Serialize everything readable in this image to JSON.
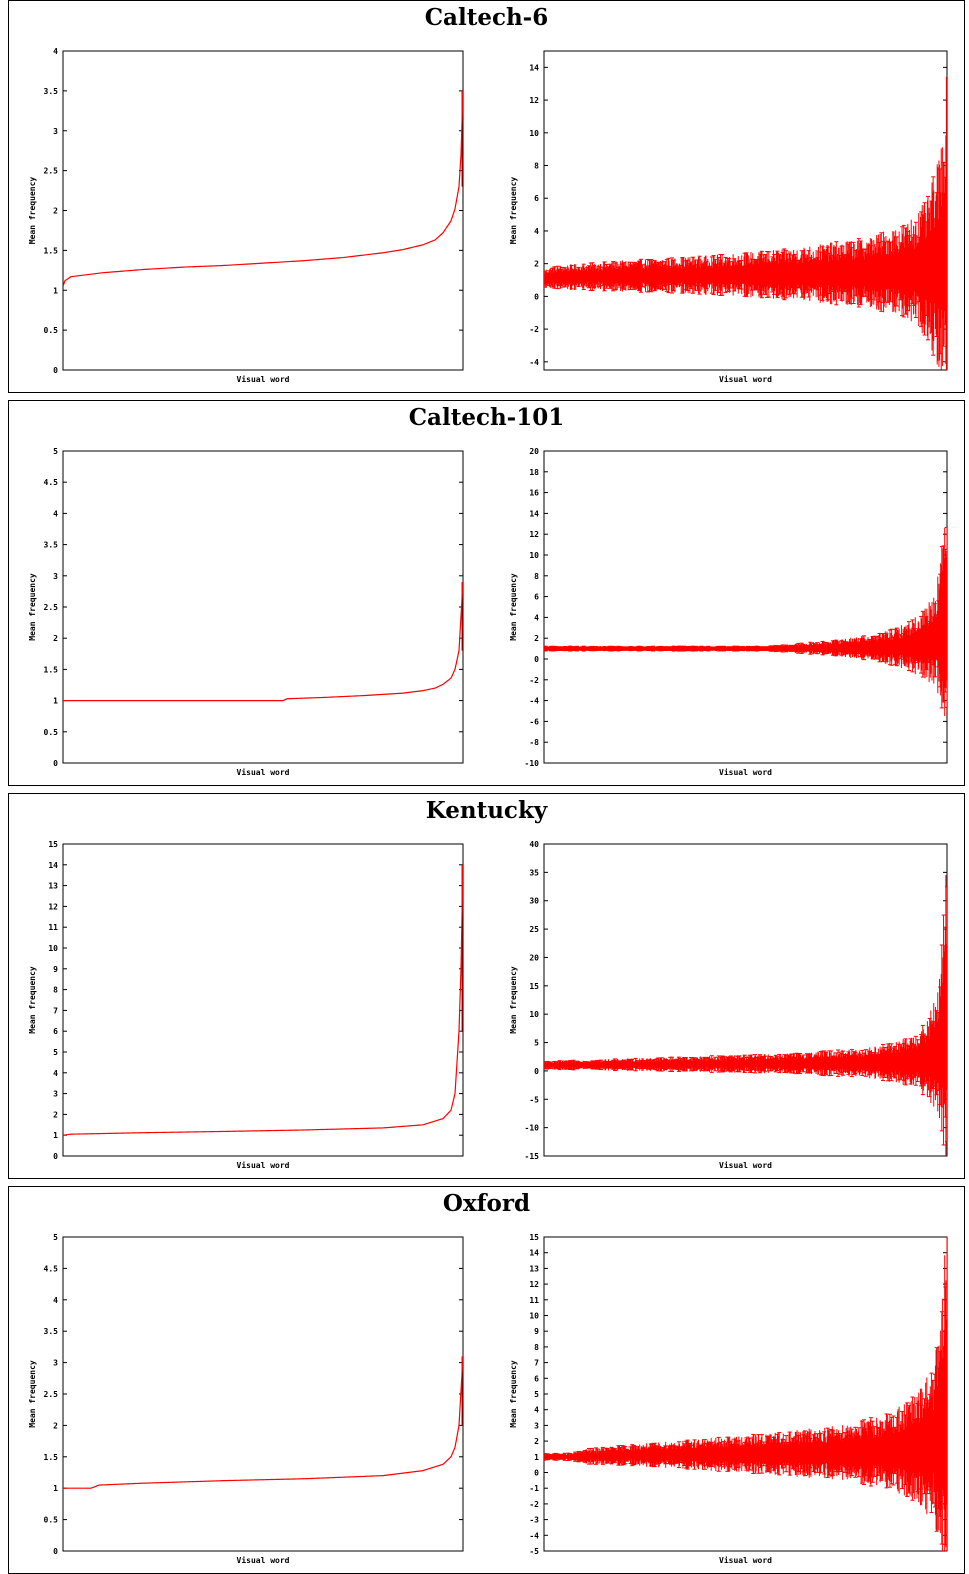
{
  "panels": [
    {
      "title": "Caltech-6",
      "charts": [
        {
          "type": "line",
          "xlabel": "Visual word",
          "ylabel": "Mean frequency",
          "ylim": [
            0,
            4
          ],
          "yticks": [
            "0",
            "0.5",
            "1",
            "1.5",
            "2",
            "2.5",
            "3",
            "3.5",
            "4"
          ],
          "series": [
            {
              "x": [
                0,
                0.005,
                0.02,
                0.1,
                0.2,
                0.3,
                0.4,
                0.5,
                0.6,
                0.7,
                0.8,
                0.85,
                0.9,
                0.93,
                0.95,
                0.97,
                0.98,
                0.99,
                0.995,
                1.0
              ],
              "y": [
                1.05,
                1.12,
                1.17,
                1.22,
                1.26,
                1.29,
                1.31,
                1.34,
                1.37,
                1.41,
                1.47,
                1.51,
                1.57,
                1.63,
                1.72,
                1.87,
                2.02,
                2.3,
                2.7,
                3.5
              ]
            }
          ],
          "color": "#ff0000",
          "grid": false
        },
        {
          "type": "errorbar",
          "xlabel": "Visual word",
          "ylabel": "Mean frequency",
          "ylim": [
            -4.5,
            15
          ],
          "yticks": [
            "-4",
            "-2",
            "0",
            "2",
            "4",
            "6",
            "8",
            "10",
            "12",
            "14"
          ],
          "mean": {
            "x": [
              0,
              0.02,
              0.2,
              0.4,
              0.6,
              0.8,
              0.9,
              0.95,
              0.98,
              1.0
            ],
            "y": [
              1.05,
              1.15,
              1.25,
              1.3,
              1.35,
              1.45,
              1.55,
              1.7,
              2.0,
              3.0
            ]
          },
          "spread": {
            "x": [
              0,
              0.02,
              0.2,
              0.4,
              0.6,
              0.8,
              0.9,
              0.95,
              0.98,
              1.0
            ],
            "y": [
              0.5,
              0.6,
              0.8,
              1.0,
              1.3,
              1.8,
              2.5,
              3.5,
              5.5,
              9.0
            ]
          },
          "color": "#ff0000",
          "grid": false
        }
      ]
    },
    {
      "title": "Caltech-101",
      "charts": [
        {
          "type": "line",
          "xlabel": "Visual word",
          "ylabel": "Mean frequency",
          "ylim": [
            0,
            5
          ],
          "yticks": [
            "0",
            "0.5",
            "1",
            "1.5",
            "2",
            "2.5",
            "3",
            "3.5",
            "4",
            "4.5",
            "5"
          ],
          "series": [
            {
              "x": [
                0,
                0.55,
                0.56,
                0.65,
                0.75,
                0.85,
                0.9,
                0.93,
                0.95,
                0.97,
                0.98,
                0.99,
                1.0
              ],
              "y": [
                1.0,
                1.0,
                1.03,
                1.05,
                1.08,
                1.12,
                1.16,
                1.2,
                1.26,
                1.36,
                1.5,
                1.8,
                2.9
              ]
            }
          ],
          "color": "#ff0000",
          "grid": false
        },
        {
          "type": "errorbar",
          "xlabel": "Visual word",
          "ylabel": "Mean frequency",
          "ylim": [
            -10,
            20
          ],
          "yticks": [
            "-10",
            "-8",
            "-6",
            "-4",
            "-2",
            "0",
            "2",
            "4",
            "6",
            "8",
            "10",
            "12",
            "14",
            "16",
            "18",
            "20"
          ],
          "mean": {
            "x": [
              0,
              0.55,
              0.7,
              0.85,
              0.93,
              0.97,
              1.0
            ],
            "y": [
              1.0,
              1.0,
              1.05,
              1.1,
              1.3,
              1.8,
              4.0
            ]
          },
          "spread": {
            "x": [
              0,
              0.55,
              0.6,
              0.7,
              0.8,
              0.88,
              0.93,
              0.97,
              0.99,
              1.0
            ],
            "y": [
              0.2,
              0.2,
              0.3,
              0.6,
              1.0,
              1.6,
              2.5,
              4.0,
              7.0,
              13.0
            ]
          },
          "color": "#ff0000",
          "grid": false
        }
      ]
    },
    {
      "title": "Kentucky",
      "charts": [
        {
          "type": "line",
          "xlabel": "Visual word",
          "ylabel": "Mean frequency",
          "ylim": [
            0,
            15
          ],
          "yticks": [
            "0",
            "1",
            "2",
            "3",
            "4",
            "5",
            "6",
            "7",
            "8",
            "9",
            "10",
            "11",
            "12",
            "13",
            "14",
            "15"
          ],
          "series": [
            {
              "x": [
                0,
                0.02,
                0.2,
                0.4,
                0.6,
                0.8,
                0.9,
                0.95,
                0.97,
                0.98,
                0.99,
                0.995,
                1.0
              ],
              "y": [
                1.0,
                1.05,
                1.12,
                1.18,
                1.25,
                1.35,
                1.5,
                1.8,
                2.2,
                3.0,
                6.0,
                9.0,
                14.0
              ]
            }
          ],
          "color": "#ff0000",
          "grid": false
        },
        {
          "type": "errorbar",
          "xlabel": "Visual word",
          "ylabel": "Mean frequency",
          "ylim": [
            -15,
            40
          ],
          "yticks": [
            "-15",
            "-10",
            "-5",
            "0",
            "5",
            "10",
            "15",
            "20",
            "25",
            "30",
            "35",
            "40"
          ],
          "mean": {
            "x": [
              0,
              0.2,
              0.4,
              0.6,
              0.8,
              0.9,
              0.95,
              0.98,
              1.0
            ],
            "y": [
              1.0,
              1.1,
              1.2,
              1.3,
              1.4,
              1.6,
              2.0,
              3.5,
              10.0
            ]
          },
          "spread": {
            "x": [
              0,
              0.2,
              0.4,
              0.6,
              0.8,
              0.9,
              0.95,
              0.98,
              0.99,
              1.0
            ],
            "y": [
              0.6,
              0.9,
              1.2,
              1.5,
              2.2,
              3.5,
              5.5,
              10.0,
              16.0,
              26.0
            ]
          },
          "color": "#ff0000",
          "grid": false
        }
      ]
    },
    {
      "title": "Oxford",
      "charts": [
        {
          "type": "line",
          "xlabel": "Visual word",
          "ylabel": "Mean frequency",
          "ylim": [
            0,
            5
          ],
          "yticks": [
            "0",
            "0.5",
            "1",
            "1.5",
            "2",
            "2.5",
            "3",
            "3.5",
            "4",
            "4.5",
            "5"
          ],
          "series": [
            {
              "x": [
                0,
                0.07,
                0.09,
                0.2,
                0.4,
                0.6,
                0.8,
                0.9,
                0.95,
                0.97,
                0.98,
                0.99,
                1.0
              ],
              "y": [
                1.0,
                1.0,
                1.05,
                1.08,
                1.12,
                1.15,
                1.2,
                1.28,
                1.38,
                1.5,
                1.65,
                2.0,
                3.1
              ]
            }
          ],
          "color": "#ff0000",
          "grid": false
        },
        {
          "type": "errorbar",
          "xlabel": "Visual word",
          "ylabel": "Mean frequency",
          "ylim": [
            -5,
            15
          ],
          "yticks": [
            "-5",
            "-4",
            "-3",
            "-2",
            "-1",
            "0",
            "1",
            "2",
            "3",
            "4",
            "5",
            "6",
            "7",
            "8",
            "9",
            "10",
            "11",
            "12",
            "13",
            "14",
            "15"
          ],
          "mean": {
            "x": [
              0,
              0.07,
              0.2,
              0.4,
              0.6,
              0.8,
              0.9,
              0.95,
              0.98,
              1.0
            ],
            "y": [
              1.0,
              1.0,
              1.1,
              1.15,
              1.2,
              1.3,
              1.45,
              1.7,
              2.2,
              4.0
            ]
          },
          "spread": {
            "x": [
              0,
              0.07,
              0.1,
              0.3,
              0.5,
              0.7,
              0.85,
              0.93,
              0.97,
              0.99,
              1.0
            ],
            "y": [
              0.2,
              0.2,
              0.4,
              0.7,
              1.0,
              1.4,
              2.0,
              3.0,
              4.5,
              7.0,
              11.0
            ]
          },
          "color": "#ff0000",
          "grid": false
        }
      ]
    }
  ]
}
